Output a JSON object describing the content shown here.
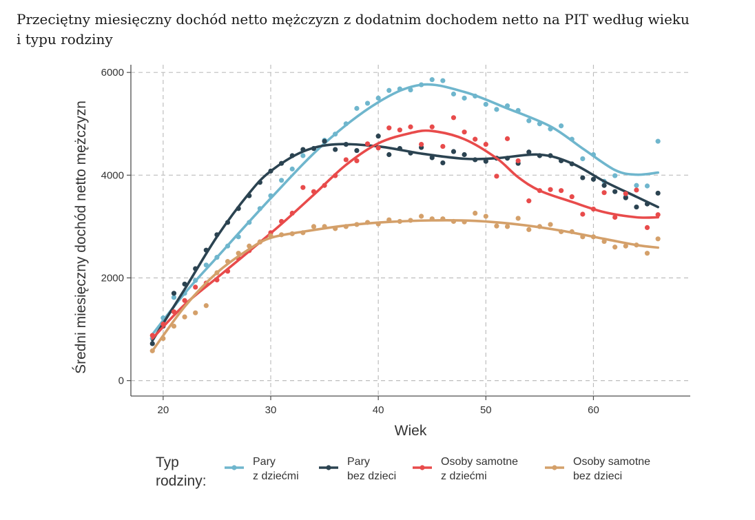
{
  "title_line1": "Przeciętny miesięczny dochód netto mężczyzn z dodatnim dochodem netto na PIT według wieku",
  "title_line2": "i typu rodziny",
  "chart_data": {
    "type": "scatter",
    "title": "Przeciętny miesięczny dochód netto mężczyzn z dodatnim dochodem netto na PIT według wieku i typu rodziny",
    "xlabel": "Wiek",
    "ylabel": "Średni miesięczny dochód netto mężczyzn",
    "xlim": [
      17,
      69
    ],
    "ylim": [
      -300,
      6150
    ],
    "xticks": [
      20,
      30,
      40,
      50,
      60
    ],
    "yticks": [
      0,
      2000,
      4000,
      6000
    ],
    "grid": true,
    "legend_title": [
      "Typ",
      "rodziny:"
    ],
    "legend_position": "bottom",
    "series": [
      {
        "name": "Pary z dziećmi",
        "label_lines": [
          "Pary",
          "z dziećmi"
        ],
        "color": "#6fb6cd",
        "points": [
          [
            19,
            820
          ],
          [
            20,
            1220
          ],
          [
            21,
            1620
          ],
          [
            22,
            1700
          ],
          [
            23,
            1950
          ],
          [
            24,
            2250
          ],
          [
            25,
            2400
          ],
          [
            26,
            2620
          ],
          [
            27,
            2800
          ],
          [
            28,
            3080
          ],
          [
            29,
            3350
          ],
          [
            30,
            3600
          ],
          [
            31,
            3900
          ],
          [
            32,
            4120
          ],
          [
            33,
            4380
          ],
          [
            34,
            4520
          ],
          [
            35,
            4680
          ],
          [
            36,
            4800
          ],
          [
            37,
            5000
          ],
          [
            38,
            5300
          ],
          [
            39,
            5400
          ],
          [
            40,
            5500
          ],
          [
            41,
            5650
          ],
          [
            42,
            5680
          ],
          [
            43,
            5660
          ],
          [
            44,
            5760
          ],
          [
            45,
            5860
          ],
          [
            46,
            5840
          ],
          [
            47,
            5580
          ],
          [
            48,
            5500
          ],
          [
            49,
            5540
          ],
          [
            50,
            5380
          ],
          [
            51,
            5280
          ],
          [
            52,
            5350
          ],
          [
            53,
            5260
          ],
          [
            54,
            5060
          ],
          [
            55,
            5000
          ],
          [
            56,
            4900
          ],
          [
            57,
            4960
          ],
          [
            58,
            4700
          ],
          [
            59,
            4320
          ],
          [
            60,
            4400
          ],
          [
            61,
            3880
          ],
          [
            62,
            3990
          ],
          [
            63,
            3580
          ],
          [
            64,
            3800
          ],
          [
            65,
            3790
          ],
          [
            66,
            4660
          ]
        ],
        "trend": [
          [
            19,
            900
          ],
          [
            22,
            1700
          ],
          [
            25,
            2400
          ],
          [
            30,
            3550
          ],
          [
            35,
            4620
          ],
          [
            40,
            5420
          ],
          [
            44,
            5760
          ],
          [
            48,
            5620
          ],
          [
            52,
            5300
          ],
          [
            56,
            4950
          ],
          [
            59,
            4520
          ],
          [
            62,
            4100
          ],
          [
            64,
            4010
          ],
          [
            66,
            4050
          ]
        ]
      },
      {
        "name": "Pary bez dzieci",
        "label_lines": [
          "Pary",
          "bez dzieci"
        ],
        "color": "#2b4351",
        "points": [
          [
            19,
            720
          ],
          [
            20,
            1060
          ],
          [
            21,
            1700
          ],
          [
            22,
            1880
          ],
          [
            23,
            2180
          ],
          [
            24,
            2540
          ],
          [
            25,
            2840
          ],
          [
            26,
            3080
          ],
          [
            27,
            3350
          ],
          [
            28,
            3600
          ],
          [
            29,
            3860
          ],
          [
            30,
            4080
          ],
          [
            31,
            4230
          ],
          [
            32,
            4380
          ],
          [
            33,
            4500
          ],
          [
            34,
            4520
          ],
          [
            35,
            4660
          ],
          [
            36,
            4500
          ],
          [
            37,
            4600
          ],
          [
            38,
            4480
          ],
          [
            39,
            4600
          ],
          [
            40,
            4760
          ],
          [
            41,
            4400
          ],
          [
            42,
            4520
          ],
          [
            43,
            4430
          ],
          [
            44,
            4540
          ],
          [
            45,
            4340
          ],
          [
            46,
            4240
          ],
          [
            47,
            4460
          ],
          [
            48,
            4400
          ],
          [
            49,
            4300
          ],
          [
            50,
            4270
          ],
          [
            51,
            4330
          ],
          [
            52,
            4330
          ],
          [
            53,
            4230
          ],
          [
            54,
            4450
          ],
          [
            55,
            4380
          ],
          [
            56,
            4380
          ],
          [
            57,
            4280
          ],
          [
            58,
            4220
          ],
          [
            59,
            3950
          ],
          [
            60,
            3920
          ],
          [
            61,
            3800
          ],
          [
            62,
            3680
          ],
          [
            63,
            3560
          ],
          [
            64,
            3380
          ],
          [
            65,
            3440
          ],
          [
            66,
            3650
          ]
        ],
        "trend": [
          [
            19,
            780
          ],
          [
            22,
            1780
          ],
          [
            25,
            2800
          ],
          [
            28,
            3650
          ],
          [
            30,
            4080
          ],
          [
            33,
            4460
          ],
          [
            36,
            4600
          ],
          [
            40,
            4560
          ],
          [
            44,
            4420
          ],
          [
            48,
            4320
          ],
          [
            51,
            4330
          ],
          [
            55,
            4400
          ],
          [
            58,
            4230
          ],
          [
            61,
            3880
          ],
          [
            64,
            3580
          ],
          [
            66,
            3380
          ]
        ]
      },
      {
        "name": "Osoby samotne z dziećmi",
        "label_lines": [
          "Osoby samotne",
          "z dziećmi"
        ],
        "color": "#e84b4b",
        "points": [
          [
            19,
            880
          ],
          [
            20,
            1100
          ],
          [
            21,
            1340
          ],
          [
            22,
            1560
          ],
          [
            23,
            1820
          ],
          [
            24,
            1900
          ],
          [
            25,
            1960
          ],
          [
            26,
            2130
          ],
          [
            27,
            2380
          ],
          [
            28,
            2530
          ],
          [
            29,
            2700
          ],
          [
            30,
            2880
          ],
          [
            31,
            3100
          ],
          [
            32,
            3260
          ],
          [
            33,
            3760
          ],
          [
            34,
            3680
          ],
          [
            35,
            3800
          ],
          [
            36,
            3990
          ],
          [
            37,
            4300
          ],
          [
            38,
            4280
          ],
          [
            39,
            4610
          ],
          [
            40,
            4530
          ],
          [
            41,
            4920
          ],
          [
            42,
            4880
          ],
          [
            43,
            4940
          ],
          [
            44,
            4600
          ],
          [
            45,
            4940
          ],
          [
            46,
            4560
          ],
          [
            47,
            5120
          ],
          [
            48,
            4840
          ],
          [
            49,
            4700
          ],
          [
            50,
            4600
          ],
          [
            51,
            3980
          ],
          [
            52,
            4710
          ],
          [
            53,
            4280
          ],
          [
            54,
            3500
          ],
          [
            55,
            3700
          ],
          [
            56,
            3720
          ],
          [
            57,
            3700
          ],
          [
            58,
            3580
          ],
          [
            59,
            3240
          ],
          [
            60,
            3340
          ],
          [
            61,
            3660
          ],
          [
            62,
            3180
          ],
          [
            63,
            3640
          ],
          [
            64,
            3710
          ],
          [
            65,
            2980
          ],
          [
            66,
            3230
          ]
        ],
        "trend": [
          [
            19,
            820
          ],
          [
            22,
            1480
          ],
          [
            25,
            2000
          ],
          [
            28,
            2520
          ],
          [
            31,
            3050
          ],
          [
            34,
            3620
          ],
          [
            37,
            4200
          ],
          [
            40,
            4620
          ],
          [
            43,
            4820
          ],
          [
            45,
            4860
          ],
          [
            48,
            4700
          ],
          [
            51,
            4330
          ],
          [
            53,
            3960
          ],
          [
            55,
            3700
          ],
          [
            58,
            3480
          ],
          [
            61,
            3280
          ],
          [
            64,
            3180
          ],
          [
            66,
            3180
          ]
        ]
      },
      {
        "name": "Osoby samotne bez dzieci",
        "label_lines": [
          "Osoby samotne",
          "bez dzieci"
        ],
        "color": "#d4a06a",
        "points": [
          [
            19,
            580
          ],
          [
            20,
            820
          ],
          [
            21,
            1060
          ],
          [
            22,
            1240
          ],
          [
            23,
            1320
          ],
          [
            24,
            1460
          ],
          [
            25,
            2100
          ],
          [
            26,
            2320
          ],
          [
            27,
            2480
          ],
          [
            28,
            2620
          ],
          [
            29,
            2700
          ],
          [
            30,
            2820
          ],
          [
            31,
            2840
          ],
          [
            32,
            2860
          ],
          [
            33,
            2880
          ],
          [
            34,
            3000
          ],
          [
            35,
            3000
          ],
          [
            36,
            2960
          ],
          [
            37,
            3000
          ],
          [
            38,
            3040
          ],
          [
            39,
            3080
          ],
          [
            40,
            3050
          ],
          [
            41,
            3130
          ],
          [
            42,
            3100
          ],
          [
            43,
            3120
          ],
          [
            44,
            3200
          ],
          [
            45,
            3150
          ],
          [
            46,
            3150
          ],
          [
            47,
            3100
          ],
          [
            48,
            3090
          ],
          [
            49,
            3260
          ],
          [
            50,
            3200
          ],
          [
            51,
            3010
          ],
          [
            52,
            3000
          ],
          [
            53,
            3160
          ],
          [
            54,
            2940
          ],
          [
            55,
            3000
          ],
          [
            56,
            3040
          ],
          [
            57,
            2900
          ],
          [
            58,
            2900
          ],
          [
            59,
            2800
          ],
          [
            60,
            2800
          ],
          [
            61,
            2710
          ],
          [
            62,
            2600
          ],
          [
            63,
            2620
          ],
          [
            64,
            2640
          ],
          [
            65,
            2480
          ],
          [
            66,
            2760
          ]
        ],
        "trend": [
          [
            19,
            580
          ],
          [
            22,
            1440
          ],
          [
            25,
            2100
          ],
          [
            28,
            2560
          ],
          [
            30,
            2780
          ],
          [
            33,
            2900
          ],
          [
            37,
            3020
          ],
          [
            41,
            3090
          ],
          [
            45,
            3120
          ],
          [
            49,
            3110
          ],
          [
            53,
            3040
          ],
          [
            57,
            2920
          ],
          [
            61,
            2760
          ],
          [
            64,
            2640
          ],
          [
            66,
            2590
          ]
        ]
      }
    ]
  }
}
